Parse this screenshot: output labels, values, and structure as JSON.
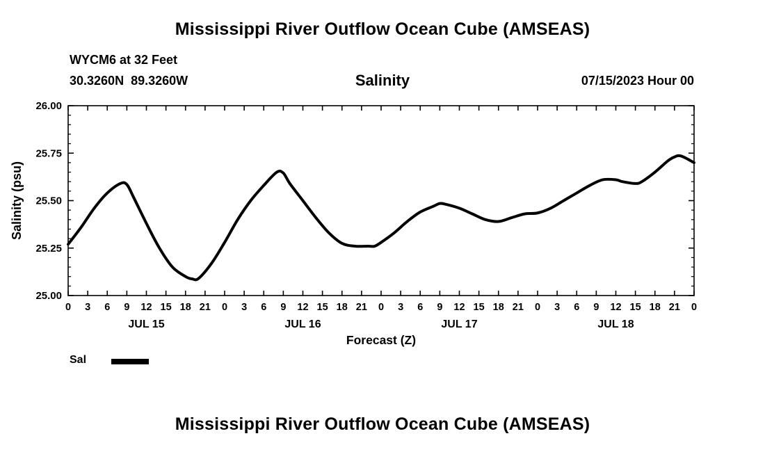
{
  "title_top": "Mississippi River Outflow Ocean Cube (AMSEAS)",
  "title_bottom": "Mississippi River Outflow Ocean Cube (AMSEAS)",
  "header": {
    "station_line1": "WYCM6 at 32 Feet",
    "station_line2": "30.3260N  89.3260W",
    "plot_title": "Salinity",
    "run_time": "07/15/2023 Hour 00"
  },
  "legend": {
    "label": "Sal"
  },
  "chart_data": {
    "type": "line",
    "title": "Salinity",
    "xlabel": "Forecast (Z)",
    "ylabel": "Salinity (psu)",
    "xlim": [
      0,
      96
    ],
    "ylim": [
      25.0,
      26.0
    ],
    "grid": false,
    "legend_position": "bottom-left",
    "line_color": "#000000",
    "line_width": 4,
    "yticks": [
      {
        "value": 26.0,
        "label": "26.00"
      },
      {
        "value": 25.75,
        "label": "25.75"
      },
      {
        "value": 25.5,
        "label": "25.50"
      },
      {
        "value": 25.25,
        "label": "25.25"
      },
      {
        "value": 25.0,
        "label": "25.00"
      }
    ],
    "xtick_step_hours": 3,
    "xtick_labels_cycle": [
      "0",
      "3",
      "6",
      "9",
      "12",
      "15",
      "18",
      "21"
    ],
    "day_labels": [
      "JUL 15",
      "JUL 16",
      "JUL 17",
      "JUL 18"
    ],
    "day_label_center_hours": [
      12,
      36,
      60,
      84
    ],
    "series": [
      {
        "name": "Sal",
        "x": [
          0,
          2,
          4,
          6,
          8,
          9,
          10,
          12,
          14,
          16,
          18,
          19,
          20,
          22,
          24,
          26,
          28,
          30,
          32,
          33,
          34,
          36,
          38,
          40,
          42,
          44,
          46,
          47,
          48,
          50,
          52,
          54,
          56,
          57,
          58,
          60,
          62,
          64,
          66,
          68,
          70,
          72,
          74,
          76,
          78,
          80,
          82,
          84,
          85,
          87,
          88,
          90,
          92,
          93,
          94,
          96
        ],
        "values": [
          25.27,
          25.36,
          25.46,
          25.54,
          25.59,
          25.585,
          25.52,
          25.38,
          25.25,
          25.15,
          25.1,
          25.088,
          25.09,
          25.17,
          25.28,
          25.4,
          25.5,
          25.58,
          25.65,
          25.645,
          25.59,
          25.5,
          25.41,
          25.33,
          25.275,
          25.26,
          25.26,
          25.26,
          25.28,
          25.33,
          25.39,
          25.44,
          25.47,
          25.485,
          25.48,
          25.46,
          25.43,
          25.4,
          25.39,
          25.41,
          25.43,
          25.435,
          25.46,
          25.5,
          25.54,
          25.58,
          25.61,
          25.61,
          25.6,
          25.59,
          25.6,
          25.65,
          25.71,
          25.73,
          25.735,
          25.7
        ]
      }
    ]
  }
}
